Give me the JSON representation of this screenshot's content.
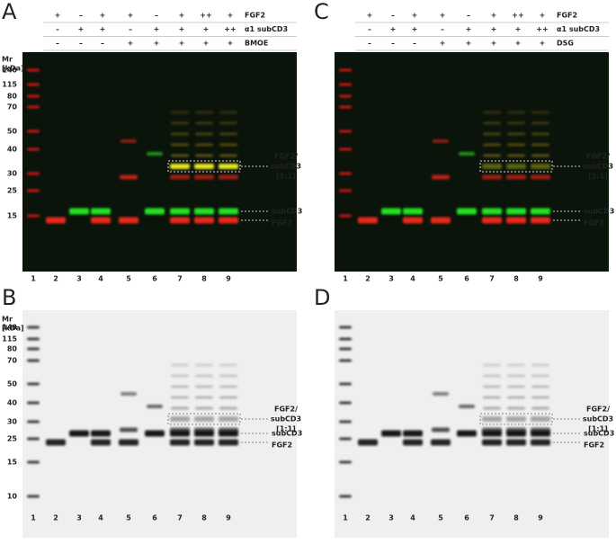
{
  "panels": [
    {
      "letter": "A",
      "header": {
        "rows": [
          {
            "label": "FGF2",
            "cells": [
              "+",
              "–",
              "+",
              "+",
              "–",
              "+",
              "++",
              "+"
            ]
          },
          {
            "label": "α1 subCD3",
            "cells": [
              "–",
              "+",
              "+",
              "–",
              "+",
              "+",
              "+",
              "++"
            ]
          },
          {
            "label": "BMOE",
            "cells": [
              "–",
              "–",
              "–",
              "+",
              "+",
              "+",
              "+",
              "+"
            ]
          }
        ]
      },
      "mr_label": [
        "Mr",
        "[kDa]"
      ],
      "markers": [
        "140",
        "115",
        "80",
        "70",
        "50",
        "40",
        "30",
        "25",
        "15"
      ],
      "lanes": [
        "1",
        "2",
        "3",
        "4",
        "5",
        "6",
        "7",
        "8",
        "9"
      ],
      "annotations": {
        "complex": [
          "FGF2/",
          "subCD3",
          "[1:1]"
        ],
        "subcd3": "subCD3",
        "fgf2": "FGF2"
      }
    },
    {
      "letter": "C",
      "header": {
        "rows": [
          {
            "label": "FGF2",
            "cells": [
              "+",
              "–",
              "+",
              "+",
              "–",
              "+",
              "++",
              "+"
            ]
          },
          {
            "label": "α1 subCD3",
            "cells": [
              "–",
              "+",
              "+",
              "–",
              "+",
              "+",
              "+",
              "++"
            ]
          },
          {
            "label": "DSG",
            "cells": [
              "–",
              "–",
              "–",
              "+",
              "+",
              "+",
              "+",
              "+"
            ]
          }
        ]
      },
      "lanes": [
        "1",
        "2",
        "3",
        "4",
        "5",
        "6",
        "7",
        "8",
        "9"
      ],
      "annotations": {
        "complex": [
          "FGF2/",
          "subCD3",
          "[1:1]"
        ],
        "subcd3": "subCD3",
        "fgf2": "FGF2"
      }
    },
    {
      "letter": "B",
      "mr_label": [
        "Mr",
        "[kDa]"
      ],
      "markers": [
        "140",
        "115",
        "80",
        "70",
        "50",
        "40",
        "30",
        "25",
        "15",
        "10"
      ],
      "lanes": [
        "1",
        "2",
        "3",
        "4",
        "5",
        "6",
        "7",
        "8",
        "9"
      ],
      "annotations": {
        "complex": [
          "FGF2/",
          "subCD3",
          "[1:1]"
        ],
        "subcd3": "subCD3",
        "fgf2": "FGF2"
      }
    },
    {
      "letter": "D",
      "lanes": [
        "1",
        "2",
        "3",
        "4",
        "5",
        "6",
        "7",
        "8",
        "9"
      ],
      "annotations": {
        "complex": [
          "FGF2/",
          "subCD3",
          "[1:1]"
        ],
        "subcd3": "subCD3",
        "fgf2": "FGF2"
      }
    }
  ]
}
